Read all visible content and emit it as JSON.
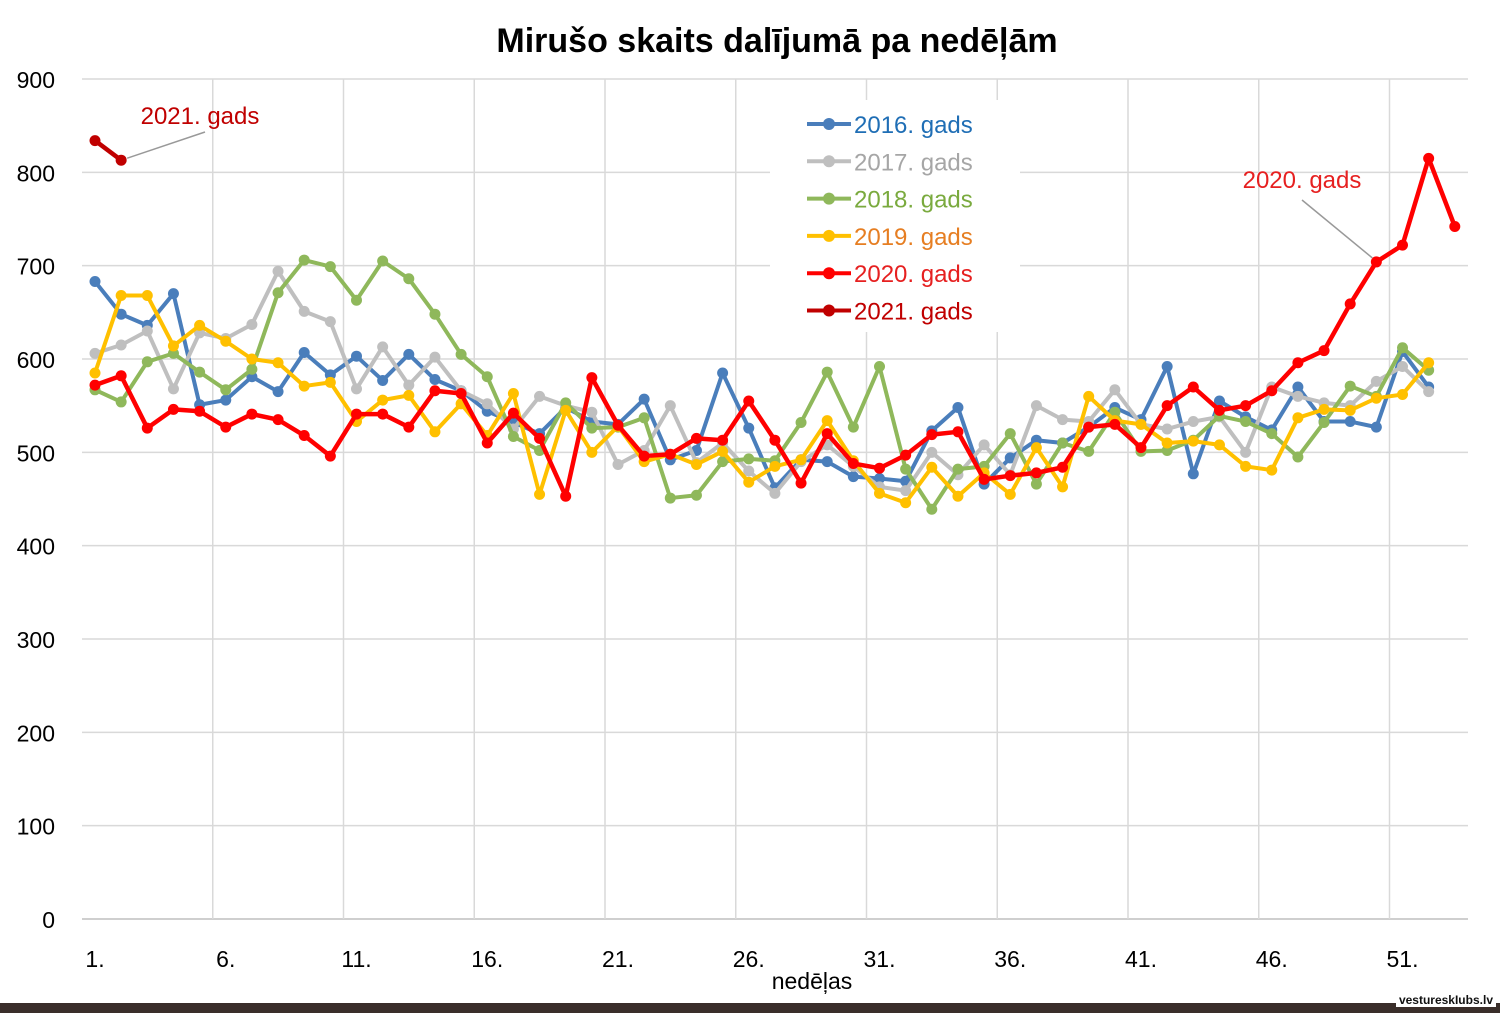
{
  "watermark": "vestureskIubs.lv",
  "chart_data": {
    "type": "line",
    "title": "Mirušo skaits dalījumā pa nedēļām",
    "xlabel": "nedēļas",
    "ylabel": "",
    "ylim": [
      0,
      900
    ],
    "yticks": [
      0,
      100,
      200,
      300,
      400,
      500,
      600,
      700,
      800,
      900
    ],
    "xticks": [
      {
        "week": 1,
        "label": "1."
      },
      {
        "week": 6,
        "label": "6."
      },
      {
        "week": 11,
        "label": "11."
      },
      {
        "week": 16,
        "label": "16."
      },
      {
        "week": 21,
        "label": "21."
      },
      {
        "week": 26,
        "label": "26."
      },
      {
        "week": 31,
        "label": "31."
      },
      {
        "week": 36,
        "label": "36."
      },
      {
        "week": 41,
        "label": "41."
      },
      {
        "week": 46,
        "label": "46."
      },
      {
        "week": 51,
        "label": "51."
      }
    ],
    "xlim": [
      1,
      53
    ],
    "grid": true,
    "legend_position": "top-center",
    "series": [
      {
        "name": "2016. gads",
        "color": "#4a7ebb",
        "label_color": "#1f6eb5",
        "values": [
          683,
          648,
          636,
          670,
          551,
          556,
          581,
          565,
          607,
          583,
          603,
          577,
          605,
          578,
          566,
          544,
          532,
          520,
          548,
          533,
          530,
          557,
          492,
          502,
          585,
          526,
          462,
          492,
          490,
          474,
          472,
          469,
          523,
          548,
          466,
          494,
          513,
          510,
          527,
          548,
          535,
          592,
          477,
          555,
          538,
          524,
          570,
          533,
          533,
          527,
          608,
          570
        ]
      },
      {
        "name": "2017. gads",
        "color": "#bfbfbf",
        "label_color": "#a6a6a6",
        "values": [
          606,
          615,
          630,
          568,
          628,
          622,
          637,
          694,
          651,
          640,
          568,
          613,
          572,
          602,
          566,
          552,
          525,
          560,
          550,
          543,
          487,
          502,
          550,
          489,
          510,
          480,
          456,
          490,
          508,
          485,
          463,
          459,
          500,
          476,
          508,
          476,
          550,
          535,
          533,
          567,
          530,
          525,
          533,
          538,
          500,
          570,
          560,
          553,
          550,
          576,
          592,
          565
        ]
      },
      {
        "name": "2018. gads",
        "color": "#8fb85b",
        "label_color": "#7aaa3e",
        "values": [
          567,
          554,
          597,
          606,
          586,
          567,
          589,
          671,
          706,
          699,
          663,
          705,
          686,
          648,
          605,
          581,
          517,
          502,
          553,
          526,
          527,
          537,
          451,
          454,
          490,
          493,
          491,
          532,
          586,
          527,
          592,
          482,
          439,
          482,
          485,
          520,
          466,
          510,
          501,
          543,
          501,
          502,
          513,
          539,
          533,
          520,
          495,
          532,
          571,
          560,
          612,
          588
        ]
      },
      {
        "name": "2019. gads",
        "color": "#ffc000",
        "label_color": "#e67e22",
        "values": [
          585,
          668,
          668,
          614,
          636,
          619,
          600,
          596,
          571,
          575,
          533,
          556,
          561,
          522,
          552,
          518,
          563,
          455,
          545,
          500,
          528,
          490,
          498,
          487,
          501,
          468,
          485,
          492,
          534,
          491,
          456,
          446,
          484,
          453,
          478,
          455,
          505,
          463,
          560,
          534,
          530,
          510,
          512,
          508,
          485,
          481,
          537,
          546,
          545,
          558,
          562,
          596
        ]
      },
      {
        "name": "2020. gads",
        "color": "#ff0000",
        "label_color": "#e62020",
        "values": [
          572,
          582,
          526,
          546,
          544,
          527,
          541,
          535,
          518,
          496,
          541,
          541,
          527,
          566,
          563,
          510,
          542,
          515,
          453,
          580,
          529,
          496,
          498,
          515,
          513,
          555,
          513,
          467,
          520,
          488,
          483,
          497,
          519,
          522,
          471,
          475,
          478,
          484,
          527,
          530,
          505,
          550,
          570,
          545,
          550,
          566,
          596,
          609,
          659,
          704,
          722,
          815,
          742
        ]
      },
      {
        "name": "2021. gads",
        "color": "#c00000",
        "label_color": "#c00000",
        "values": [
          834,
          813
        ]
      }
    ],
    "annotations": [
      {
        "text": "2021. gads",
        "series": "2021. gads",
        "color": "#c00000"
      },
      {
        "text": "2020. gads",
        "series": "2020. gads",
        "color": "#e62020"
      }
    ]
  }
}
